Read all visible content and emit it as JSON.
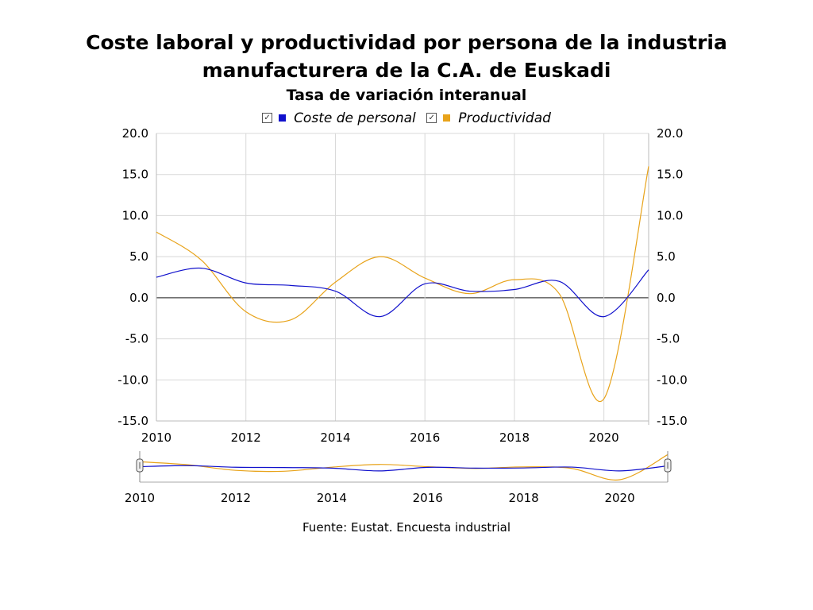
{
  "chart_data": {
    "type": "line",
    "title": "Coste laboral y productividad por persona de la industria",
    "title_line2": "manufacturera de la C.A. de Euskadi",
    "subtitle": "Tasa de variación interanual",
    "x": [
      2010,
      2011,
      2012,
      2013,
      2014,
      2015,
      2016,
      2017,
      2018,
      2019,
      2020,
      2021
    ],
    "x_ticks": [
      "2010",
      "2012",
      "2014",
      "2016",
      "2018",
      "2020"
    ],
    "y_ticks": [
      "20.0",
      "15.0",
      "10.0",
      "5.0",
      "0.0",
      "-5.0",
      "-10.0",
      "-15.0"
    ],
    "ylim": [
      -15,
      20
    ],
    "xlim": [
      2010,
      2021
    ],
    "series": [
      {
        "name": "Coste de personal",
        "color": "#1010cc",
        "values": [
          2.5,
          3.6,
          1.8,
          1.5,
          0.8,
          -2.3,
          1.7,
          0.8,
          1.0,
          2.0,
          -2.3,
          3.4
        ]
      },
      {
        "name": "Productividad",
        "color": "#e8a31a",
        "values": [
          8.0,
          4.6,
          -1.7,
          -2.7,
          1.9,
          5.0,
          2.4,
          0.5,
          2.2,
          0.5,
          -12.3,
          16.0
        ]
      }
    ],
    "grid": true,
    "legend": "top-center",
    "navigator_ticks": [
      "2010",
      "2012",
      "2014",
      "2016",
      "2018",
      "2020"
    ]
  },
  "source_text": "Fuente: Eustat. Encuesta industrial"
}
